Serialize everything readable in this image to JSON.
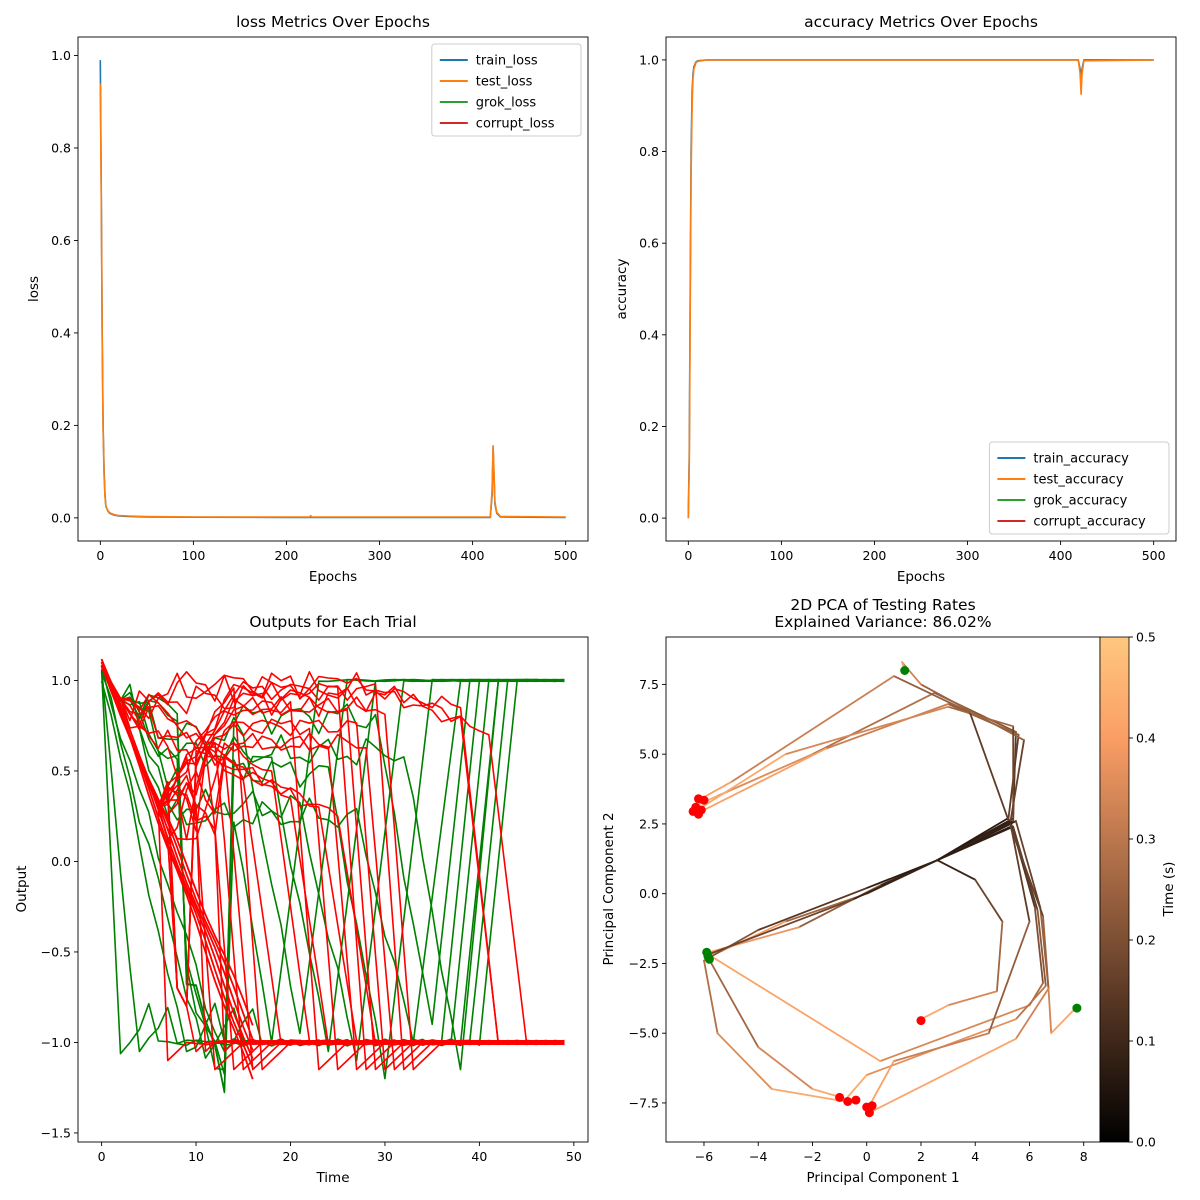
{
  "chart_data": [
    {
      "id": "loss",
      "type": "line",
      "title": "loss Metrics Over Epochs",
      "xlabel": "Epochs",
      "ylabel": "loss",
      "xlim": [
        -24,
        524
      ],
      "ylim": [
        -0.05,
        1.04
      ],
      "xticks": [
        0,
        100,
        200,
        300,
        400,
        500
      ],
      "yticks": [
        0.0,
        0.2,
        0.4,
        0.6,
        0.8,
        1.0
      ],
      "xtick_labels": [
        "0",
        "100",
        "200",
        "300",
        "400",
        "500"
      ],
      "ytick_labels": [
        "0.0",
        "0.2",
        "0.4",
        "0.6",
        "0.8",
        "1.0"
      ],
      "legend": "top-right",
      "series": [
        {
          "name": "train_loss",
          "color": "#1f77b4",
          "x": [
            0,
            1,
            2,
            3,
            4,
            5,
            6,
            8,
            10,
            15,
            20,
            30,
            50,
            100,
            200,
            300,
            400,
            419,
            421,
            422,
            423,
            424,
            426,
            430,
            500
          ],
          "y": [
            0.99,
            0.7,
            0.4,
            0.2,
            0.1,
            0.05,
            0.025,
            0.015,
            0.01,
            0.006,
            0.004,
            0.003,
            0.002,
            0.0015,
            0.001,
            0.001,
            0.001,
            0.001,
            0.05,
            0.153,
            0.09,
            0.03,
            0.01,
            0.002,
            0.001
          ]
        },
        {
          "name": "test_loss",
          "color": "#ff7f0e",
          "x": [
            0,
            1,
            2,
            3,
            4,
            5,
            6,
            8,
            10,
            15,
            20,
            30,
            50,
            100,
            200,
            225,
            226,
            227,
            300,
            400,
            419,
            421,
            422,
            423,
            424,
            426,
            430,
            500
          ],
          "y": [
            0.94,
            0.68,
            0.38,
            0.19,
            0.09,
            0.045,
            0.025,
            0.016,
            0.011,
            0.007,
            0.005,
            0.004,
            0.003,
            0.002,
            0.002,
            0.002,
            0.005,
            0.002,
            0.002,
            0.002,
            0.002,
            0.06,
            0.156,
            0.1,
            0.035,
            0.012,
            0.003,
            0.002
          ]
        },
        {
          "name": "grok_loss",
          "color": "#2ca02c",
          "x": [],
          "y": []
        },
        {
          "name": "corrupt_loss",
          "color": "#d62728",
          "x": [],
          "y": []
        }
      ]
    },
    {
      "id": "accuracy",
      "type": "line",
      "title": "accuracy Metrics Over Epochs",
      "xlabel": "Epochs",
      "ylabel": "accuracy",
      "xlim": [
        -24,
        524
      ],
      "ylim": [
        -0.05,
        1.05
      ],
      "xticks": [
        0,
        100,
        200,
        300,
        400,
        500
      ],
      "yticks": [
        0.0,
        0.2,
        0.4,
        0.6,
        0.8,
        1.0
      ],
      "xtick_labels": [
        "0",
        "100",
        "200",
        "300",
        "400",
        "500"
      ],
      "ytick_labels": [
        "0.0",
        "0.2",
        "0.4",
        "0.6",
        "0.8",
        "1.0"
      ],
      "legend": "bottom-right",
      "series": [
        {
          "name": "train_accuracy",
          "color": "#1f77b4",
          "x": [
            0,
            1,
            2,
            3,
            4,
            5,
            6,
            8,
            10,
            20,
            100,
            419,
            421,
            422,
            423,
            425,
            500
          ],
          "y": [
            0.0,
            0.15,
            0.5,
            0.8,
            0.93,
            0.97,
            0.985,
            0.995,
            0.998,
            1.0,
            1.0,
            1.0,
            0.98,
            0.95,
            0.98,
            1.0,
            1.0
          ]
        },
        {
          "name": "test_accuracy",
          "color": "#ff7f0e",
          "x": [
            0,
            1,
            2,
            3,
            4,
            5,
            6,
            8,
            10,
            20,
            100,
            419,
            421,
            422,
            423,
            425,
            500
          ],
          "y": [
            0.0,
            0.12,
            0.45,
            0.75,
            0.9,
            0.96,
            0.98,
            0.993,
            0.997,
            1.0,
            1.0,
            1.0,
            0.97,
            0.925,
            0.97,
            0.998,
            1.0
          ]
        },
        {
          "name": "grok_accuracy",
          "color": "#2ca02c",
          "x": [],
          "y": []
        },
        {
          "name": "corrupt_accuracy",
          "color": "#d62728",
          "x": [],
          "y": []
        }
      ]
    },
    {
      "id": "outputs",
      "type": "line",
      "title": "Outputs for Each Trial",
      "xlabel": "Time",
      "ylabel": "Output",
      "xlim": [
        -2.5,
        51.5
      ],
      "ylim": [
        -1.55,
        1.24
      ],
      "xticks": [
        0,
        10,
        20,
        30,
        40,
        50
      ],
      "yticks": [
        -1.5,
        -1.0,
        -0.5,
        0.0,
        0.5,
        1.0
      ],
      "xtick_labels": [
        "0",
        "10",
        "20",
        "30",
        "40",
        "50"
      ],
      "ytick_labels": [
        "−1.5",
        "−1.0",
        "−0.5",
        "0.0",
        "0.5",
        "1.0"
      ],
      "legend": "none",
      "series_color_green": "#008000",
      "series_color_red": "#ff0000",
      "green_trials": [
        {
          "ds": 18,
          "de": 5,
          "um": 0.85,
          "dm": -1.0
        },
        {
          "ds": 21,
          "de": 5,
          "um": 0.7,
          "dm": -0.95
        },
        {
          "ds": 24,
          "de": 5,
          "um": 0.55,
          "dm": -1.05
        },
        {
          "ds": 27,
          "de": 5,
          "um": 0.3,
          "dm": -1.1
        },
        {
          "ds": 30,
          "de": 5,
          "um": 0.5,
          "dm": -1.2
        },
        {
          "ds": 33,
          "de": 5,
          "um": 0.25,
          "dm": -1.0
        },
        {
          "ds": 35,
          "de": 4,
          "um": 0.8,
          "dm": -0.9
        },
        {
          "ds": 38,
          "de": 4,
          "um": 0.6,
          "dm": -1.15
        }
      ],
      "green_ramp_start": [
        2,
        4,
        9,
        11,
        13,
        15,
        16,
        17,
        18,
        21,
        24,
        27,
        30,
        32
      ],
      "red_trials": [
        {
          "ds": 5,
          "de": 10,
          "um": 0.9,
          "dm": 0.45
        },
        {
          "ds": 7,
          "de": 11,
          "um": 0.8,
          "dm": 0.5
        },
        {
          "ds": 9,
          "de": 11,
          "um": 0.7,
          "dm": 0.35
        },
        {
          "ds": 11,
          "de": 12,
          "um": 0.6,
          "dm": 0.3
        },
        {
          "ds": 13,
          "de": 12,
          "um": 0.55,
          "dm": 0.25
        },
        {
          "ds": 26,
          "de": 12,
          "um": 0.98,
          "dm": 0.85
        },
        {
          "ds": 28,
          "de": 10,
          "um": 0.95,
          "dm": 0.8
        },
        {
          "ds": 32,
          "de": 9,
          "um": 0.9,
          "dm": 0.7
        }
      ],
      "red_down_start": [
        3,
        5,
        6,
        8,
        9,
        11,
        12,
        13,
        14,
        20,
        22,
        24,
        25,
        26,
        27,
        28,
        29,
        30
      ]
    },
    {
      "id": "pca",
      "type": "line",
      "title": "2D PCA of Testing Rates",
      "subtitle": "Explained Variance: 86.02%",
      "xlabel": "Principal Component 1",
      "ylabel": "Principal Component 2",
      "xlim": [
        -7.4,
        8.6
      ],
      "ylim": [
        -8.9,
        9.2
      ],
      "xticks": [
        -6,
        -4,
        -2,
        0,
        2,
        4,
        6,
        8
      ],
      "yticks": [
        -7.5,
        -5.0,
        -2.5,
        0.0,
        2.5,
        5.0,
        7.5
      ],
      "xtick_labels": [
        "−6",
        "−4",
        "−2",
        "0",
        "2",
        "4",
        "6",
        "8"
      ],
      "ytick_labels": [
        "−7.5",
        "−5.0",
        "−2.5",
        "0.0",
        "2.5",
        "5.0",
        "7.5"
      ],
      "colorbar": {
        "label": "Time (s)",
        "range": [
          0.0,
          0.5
        ],
        "ticks": [
          0.0,
          0.1,
          0.2,
          0.3,
          0.4,
          0.5
        ],
        "tick_labels": [
          "0.0",
          "0.1",
          "0.2",
          "0.3",
          "0.4",
          "0.5"
        ],
        "colormap": "copper"
      },
      "trajectories": [
        [
          [
            2.6,
            1.2
          ],
          [
            5.3,
            2.6
          ],
          [
            6.2,
            -0.5
          ],
          [
            6.5,
            -3.2
          ],
          [
            6.0,
            -4.0
          ],
          [
            0.5,
            -6.0
          ],
          [
            -5.8,
            -2.2
          ]
        ],
        [
          [
            2.6,
            1.2
          ],
          [
            5.4,
            2.7
          ],
          [
            5.5,
            5.8
          ],
          [
            2.5,
            7.2
          ],
          [
            -2.0,
            5.0
          ],
          [
            -5.5,
            3.5
          ],
          [
            -6.2,
            3.2
          ]
        ],
        [
          [
            2.6,
            1.2
          ],
          [
            5.4,
            2.4
          ],
          [
            6.3,
            -0.6
          ],
          [
            6.6,
            -3.3
          ],
          [
            5.5,
            -4.5
          ],
          [
            0.0,
            -6.5
          ],
          [
            -0.8,
            -7.4
          ]
        ],
        [
          [
            2.6,
            1.2
          ],
          [
            5.2,
            2.5
          ],
          [
            5.6,
            5.7
          ],
          [
            3.0,
            6.8
          ],
          [
            -1.5,
            5.2
          ],
          [
            -6.0,
            3.0
          ]
        ],
        [
          [
            2.6,
            1.2
          ],
          [
            5.5,
            2.6
          ],
          [
            6.4,
            -0.5
          ],
          [
            6.7,
            -3.4
          ],
          [
            6.8,
            -5.0
          ],
          [
            7.7,
            -4.1
          ]
        ],
        [
          [
            2.6,
            1.2
          ],
          [
            0.0,
            0.0
          ],
          [
            -3.0,
            -1.0
          ],
          [
            -5.9,
            -2.3
          ]
        ],
        [
          [
            2.6,
            1.2
          ],
          [
            0.5,
            0.3
          ],
          [
            -2.5,
            -1.2
          ],
          [
            -5.8,
            -2.1
          ]
        ],
        [
          [
            2.6,
            1.2
          ],
          [
            5.3,
            2.6
          ],
          [
            5.8,
            5.5
          ],
          [
            2.0,
            7.5
          ],
          [
            1.3,
            8.3
          ],
          [
            1.4,
            8.0
          ]
        ],
        [
          [
            2.6,
            1.2
          ],
          [
            4.0,
            0.5
          ],
          [
            5.0,
            -1.0
          ],
          [
            4.8,
            -3.5
          ],
          [
            3.0,
            -4.0
          ],
          [
            2.0,
            -4.5
          ]
        ],
        [
          [
            2.6,
            1.2
          ],
          [
            5.3,
            2.5
          ],
          [
            6.0,
            -1.0
          ],
          [
            4.5,
            -5.0
          ],
          [
            1.0,
            -6.0
          ],
          [
            0.1,
            -7.6
          ]
        ],
        [
          [
            2.6,
            1.2
          ],
          [
            0.0,
            0.2
          ],
          [
            -4.0,
            -1.3
          ],
          [
            -6.0,
            -2.4
          ],
          [
            -5.5,
            -5.0
          ],
          [
            -3.5,
            -7.0
          ],
          [
            -0.5,
            -7.5
          ]
        ],
        [
          [
            2.6,
            1.2
          ],
          [
            5.4,
            2.6
          ],
          [
            5.4,
            6.0
          ],
          [
            3.0,
            6.7
          ],
          [
            -3.0,
            5.0
          ],
          [
            -6.4,
            2.9
          ]
        ],
        [
          [
            2.6,
            1.2
          ],
          [
            5.2,
            2.7
          ],
          [
            3.8,
            6.5
          ],
          [
            1.0,
            7.8
          ],
          [
            -5.0,
            4.0
          ],
          [
            -6.3,
            3.3
          ]
        ],
        [
          [
            2.6,
            1.2
          ],
          [
            5.3,
            2.4
          ],
          [
            6.5,
            -0.8
          ],
          [
            6.7,
            -3.4
          ],
          [
            5.5,
            -5.2
          ],
          [
            0.2,
            -7.8
          ]
        ],
        [
          [
            2.6,
            1.2
          ],
          [
            -0.5,
            -0.2
          ],
          [
            -5.9,
            -2.2
          ],
          [
            -4.0,
            -5.5
          ],
          [
            -2.0,
            -7.0
          ],
          [
            -0.6,
            -7.4
          ]
        ]
      ],
      "red_points": [
        [
          -6.2,
          3.4
        ],
        [
          -6.0,
          3.35
        ],
        [
          -6.3,
          3.1
        ],
        [
          -6.1,
          3.0
        ],
        [
          -6.4,
          2.95
        ],
        [
          -6.2,
          2.85
        ],
        [
          -1.0,
          -7.3
        ],
        [
          -0.7,
          -7.45
        ],
        [
          -0.4,
          -7.4
        ],
        [
          0.0,
          -7.65
        ],
        [
          0.2,
          -7.6
        ],
        [
          0.1,
          -7.85
        ],
        [
          2.0,
          -4.55
        ]
      ],
      "green_points": [
        [
          1.4,
          8.0
        ],
        [
          -5.9,
          -2.1
        ],
        [
          -5.85,
          -2.25
        ],
        [
          -5.8,
          -2.35
        ],
        [
          7.75,
          -4.1
        ]
      ]
    }
  ]
}
